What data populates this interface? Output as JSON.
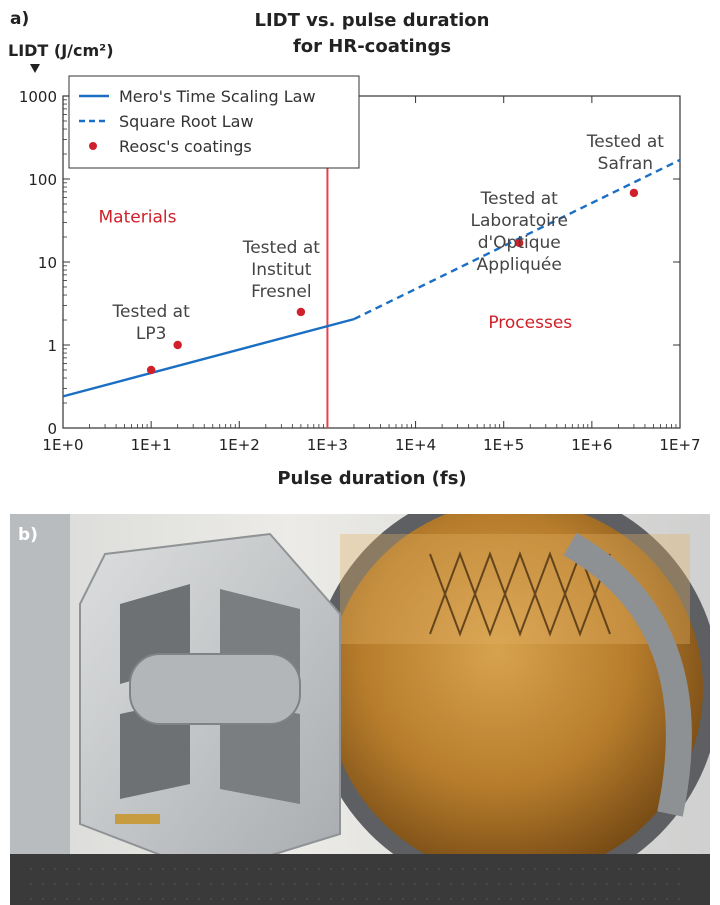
{
  "panel_a_label": "a)",
  "panel_b_label": "b)",
  "chart_data": {
    "type": "line",
    "title_line1": "LIDT vs. pulse duration",
    "title_line2": "for HR-coatings",
    "ylabel": "LIDT (J/cm²)",
    "xlabel": "Pulse duration (fs)",
    "x_scale": "log",
    "y_scale": "log",
    "xlim": [
      1,
      10000000
    ],
    "ylim": [
      0.1,
      1000
    ],
    "x_ticks": [
      1,
      10,
      100,
      1000,
      10000,
      100000,
      1000000,
      10000000
    ],
    "x_tick_labels": [
      "1E+0",
      "1E+1",
      "1E+2",
      "1E+3",
      "1E+4",
      "1E+5",
      "1E+6",
      "1E+7"
    ],
    "y_ticks": [
      0.1,
      1,
      10,
      100,
      1000
    ],
    "y_tick_labels": [
      "0",
      "1",
      "10",
      "100",
      "1000"
    ],
    "grid": false,
    "legend_position": "top-left",
    "series": [
      {
        "name": "Mero's Time Scaling Law",
        "style": "solid",
        "color": "#1a6fc4",
        "x": [
          1,
          2000
        ],
        "y": [
          0.24,
          2.05
        ]
      },
      {
        "name": "Square Root Law",
        "style": "dashed",
        "color": "#1a6fc4",
        "x": [
          2000,
          10000000
        ],
        "y": [
          2.05,
          170
        ]
      },
      {
        "name": "Reosc's coatings",
        "style": "points",
        "color": "#d0202a",
        "x": [
          10,
          20,
          500,
          150000,
          3000000
        ],
        "y": [
          0.5,
          1.0,
          2.5,
          17,
          68
        ]
      }
    ],
    "vline": {
      "x": 1000,
      "color": "#e8414b"
    },
    "annotations": [
      {
        "lines": [
          "Materials"
        ],
        "color": "#d0202a",
        "x": 7,
        "y": 30
      },
      {
        "lines": [
          "Tested at",
          "LP3"
        ],
        "color": "#444444",
        "x": 10,
        "y": 1.6
      },
      {
        "lines": [
          "Tested at",
          "Institut",
          "Fresnel"
        ],
        "color": "#444444",
        "x": 300,
        "y": 7
      },
      {
        "lines": [
          "Tested at",
          "Laboratoire",
          "d'Optique",
          "Appliquée"
        ],
        "color": "#444444",
        "x": 150000,
        "y": 20
      },
      {
        "lines": [
          "Processes"
        ],
        "color": "#d0202a",
        "x": 200000,
        "y": 1.6
      },
      {
        "lines": [
          "Tested at",
          "Safran"
        ],
        "color": "#444444",
        "x": 2400000,
        "y": 180
      }
    ]
  },
  "photo": {
    "description_icon": "optical-mirror-mount-photo",
    "colors": {
      "frame": "#c9cbcd",
      "mirror": "#b77d2c",
      "table": "#3a3a3a",
      "background": "#e6e6e4"
    }
  }
}
